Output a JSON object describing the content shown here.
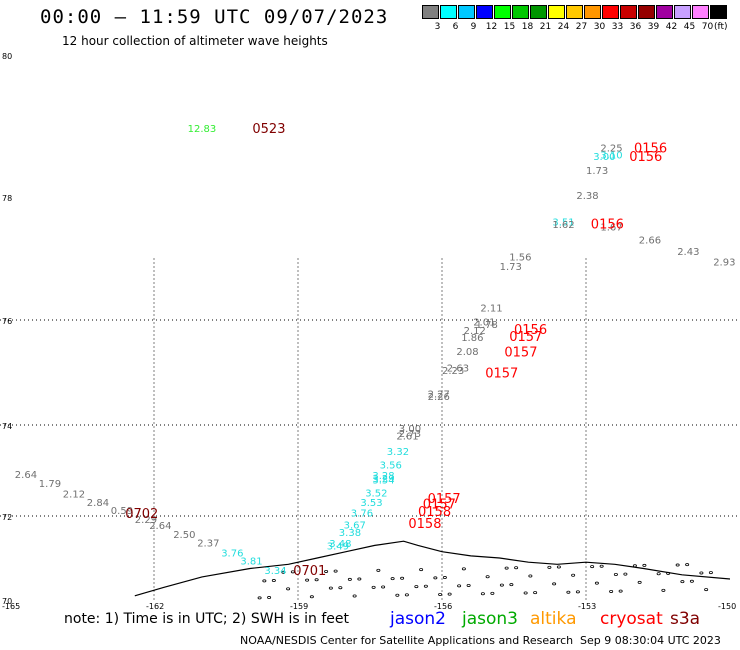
{
  "header": {
    "title": "00:00 – 11:59 UTC 09/07/2023",
    "subtitle": "12 hour collection of altimeter wave heights"
  },
  "color_scale": {
    "swatches": [
      {
        "label": "3",
        "color": "#808080"
      },
      {
        "label": "6",
        "color": "#00ffff"
      },
      {
        "label": "9",
        "color": "#00c8ff"
      },
      {
        "label": "12",
        "color": "#0000ff"
      },
      {
        "label": "15",
        "color": "#00ff00"
      },
      {
        "label": "18",
        "color": "#00c800"
      },
      {
        "label": "21",
        "color": "#009600"
      },
      {
        "label": "24",
        "color": "#ffff00"
      },
      {
        "label": "27",
        "color": "#ffc800"
      },
      {
        "label": "30",
        "color": "#ff9600"
      },
      {
        "label": "33",
        "color": "#ff0000"
      },
      {
        "label": "36",
        "color": "#c80000"
      },
      {
        "label": "39",
        "color": "#960000"
      },
      {
        "label": "42",
        "color": "#a000a0"
      },
      {
        "label": "45",
        "color": "#c8a0ff"
      },
      {
        "label": "70",
        "color": "#ff80ff"
      },
      {
        "label": "",
        "color": "#000000"
      }
    ],
    "unit": "(ft)"
  },
  "map": {
    "lat_labels": [
      "80",
      "78",
      "76",
      "74",
      "72",
      "70"
    ],
    "lon_labels": [
      "-165",
      "-162",
      "-159",
      "-156",
      "-153",
      "-150"
    ],
    "wave_labels": [
      {
        "text": "12.83",
        "color": "#33ee33",
        "lon": -161.3,
        "lat": 78.97
      },
      {
        "text": "2.25",
        "color": "#707070",
        "lon": -152.7,
        "lat": 78.7
      },
      {
        "text": "3.10",
        "color": "#22dddd",
        "lon": -152.7,
        "lat": 78.6
      },
      {
        "text": "3.00",
        "color": "#22dddd",
        "lon": -152.85,
        "lat": 78.58
      },
      {
        "text": "1.73",
        "color": "#707070",
        "lon": -153.0,
        "lat": 78.38
      },
      {
        "text": "2.38",
        "color": "#707070",
        "lon": -153.2,
        "lat": 78.03
      },
      {
        "text": "3.51",
        "color": "#22dddd",
        "lon": -153.7,
        "lat": 77.6
      },
      {
        "text": "1.62",
        "color": "#707070",
        "lon": -153.7,
        "lat": 77.56
      },
      {
        "text": "1.67",
        "color": "#707070",
        "lon": -152.7,
        "lat": 77.52
      },
      {
        "text": "2.66",
        "color": "#707070",
        "lon": -151.9,
        "lat": 77.31
      },
      {
        "text": "2.43",
        "color": "#707070",
        "lon": -151.1,
        "lat": 77.12
      },
      {
        "text": "2.93",
        "color": "#707070",
        "lon": -150.35,
        "lat": 76.95
      },
      {
        "text": "1.56",
        "color": "#707070",
        "lon": -154.6,
        "lat": 77.03
      },
      {
        "text": "1.73",
        "color": "#707070",
        "lon": -154.8,
        "lat": 76.88
      },
      {
        "text": "2.11",
        "color": "#707070",
        "lon": -155.2,
        "lat": 76.2
      },
      {
        "text": "2.01",
        "color": "#707070",
        "lon": -155.35,
        "lat": 75.97
      },
      {
        "text": "1.78",
        "color": "#707070",
        "lon": -155.3,
        "lat": 75.92
      },
      {
        "text": "2.12",
        "color": "#707070",
        "lon": -155.55,
        "lat": 75.81
      },
      {
        "text": "1.86",
        "color": "#707070",
        "lon": -155.6,
        "lat": 75.68
      },
      {
        "text": "2.08",
        "color": "#707070",
        "lon": -155.7,
        "lat": 75.41
      },
      {
        "text": "2.63",
        "color": "#707070",
        "lon": -155.9,
        "lat": 75.1
      },
      {
        "text": "2.23",
        "color": "#707070",
        "lon": -156.0,
        "lat": 75.05
      },
      {
        "text": "2.27",
        "color": "#707070",
        "lon": -156.3,
        "lat": 74.6
      },
      {
        "text": "2.26",
        "color": "#707070",
        "lon": -156.3,
        "lat": 74.55
      },
      {
        "text": "3.00",
        "color": "#707070",
        "lon": -156.9,
        "lat": 73.93
      },
      {
        "text": "2.73",
        "color": "#707070",
        "lon": -156.9,
        "lat": 73.82
      },
      {
        "text": "2.61",
        "color": "#707070",
        "lon": -156.95,
        "lat": 73.77
      },
      {
        "text": "3.32",
        "color": "#22dddd",
        "lon": -157.15,
        "lat": 73.43
      },
      {
        "text": "3.56",
        "color": "#22dddd",
        "lon": -157.3,
        "lat": 73.13
      },
      {
        "text": "3.28",
        "color": "#22dddd",
        "lon": -157.45,
        "lat": 72.9
      },
      {
        "text": "3.29",
        "color": "#22dddd",
        "lon": -157.45,
        "lat": 72.84
      },
      {
        "text": "3.54",
        "color": "#22dddd",
        "lon": -157.45,
        "lat": 72.8
      },
      {
        "text": "3.52",
        "color": "#22dddd",
        "lon": -157.6,
        "lat": 72.52
      },
      {
        "text": "3.53",
        "color": "#22dddd",
        "lon": -157.7,
        "lat": 72.31
      },
      {
        "text": "3.76",
        "color": "#22dddd",
        "lon": -157.9,
        "lat": 72.08
      },
      {
        "text": "3.67",
        "color": "#22dddd",
        "lon": -158.05,
        "lat": 71.8
      },
      {
        "text": "3.38",
        "color": "#22dddd",
        "lon": -158.15,
        "lat": 71.62
      },
      {
        "text": "3.48",
        "color": "#22dddd",
        "lon": -158.35,
        "lat": 71.36
      },
      {
        "text": "3.49",
        "color": "#22dddd",
        "lon": -158.4,
        "lat": 71.3
      },
      {
        "text": "2.64",
        "color": "#707070",
        "lon": -164.9,
        "lat": 72.92
      },
      {
        "text": "1.79",
        "color": "#707070",
        "lon": -164.4,
        "lat": 72.73
      },
      {
        "text": "2.12",
        "color": "#707070",
        "lon": -163.9,
        "lat": 72.5
      },
      {
        "text": "2.84",
        "color": "#707070",
        "lon": -163.4,
        "lat": 72.31
      },
      {
        "text": "0.59",
        "color": "#707070",
        "lon": -162.9,
        "lat": 72.13
      },
      {
        "text": "2.29",
        "color": "#707070",
        "lon": -162.4,
        "lat": 71.93
      },
      {
        "text": "2.64",
        "color": "#707070",
        "lon": -162.1,
        "lat": 71.78
      },
      {
        "text": "2.50",
        "color": "#707070",
        "lon": -161.6,
        "lat": 71.57
      },
      {
        "text": "2.37",
        "color": "#707070",
        "lon": -161.1,
        "lat": 71.37
      },
      {
        "text": "3.76",
        "color": "#22dddd",
        "lon": -160.6,
        "lat": 71.13
      },
      {
        "text": "3.81",
        "color": "#22dddd",
        "lon": -160.2,
        "lat": 70.94
      },
      {
        "text": "3.34",
        "color": "#22dddd",
        "lon": -159.7,
        "lat": 70.72
      }
    ],
    "time_labels": [
      {
        "text": "0523",
        "color": "#800000",
        "lon": -159.95,
        "lat": 78.97
      },
      {
        "text": "0156",
        "color": "#ff0000",
        "lon": -152.0,
        "lat": 78.7
      },
      {
        "text": "0156",
        "color": "#ff0000",
        "lon": -152.1,
        "lat": 78.58
      },
      {
        "text": "0156",
        "color": "#ff0000",
        "lon": -152.9,
        "lat": 77.57
      },
      {
        "text": "0156",
        "color": "#ff0000",
        "lon": -154.5,
        "lat": 75.83
      },
      {
        "text": "0157",
        "color": "#ff0000",
        "lon": -154.6,
        "lat": 75.7
      },
      {
        "text": "0157",
        "color": "#ff0000",
        "lon": -154.7,
        "lat": 75.4
      },
      {
        "text": "0157",
        "color": "#ff0000",
        "lon": -155.1,
        "lat": 75.0
      },
      {
        "text": "0157",
        "color": "#ff0000",
        "lon": -156.3,
        "lat": 72.4
      },
      {
        "text": "0157",
        "color": "#ff0000",
        "lon": -156.4,
        "lat": 72.28
      },
      {
        "text": "0158",
        "color": "#ff0000",
        "lon": -156.5,
        "lat": 72.11
      },
      {
        "text": "0158",
        "color": "#ff0000",
        "lon": -156.7,
        "lat": 71.83
      },
      {
        "text": "0702",
        "color": "#800000",
        "lon": -162.6,
        "lat": 72.07
      },
      {
        "text": "0701",
        "color": "#800000",
        "lon": -159.1,
        "lat": 70.72
      }
    ]
  },
  "footer": {
    "note": "note: 1) Time is in UTC; 2) SWH is in feet",
    "satellites": [
      {
        "name": "jason2",
        "color": "#0000ff"
      },
      {
        "name": "jason3",
        "color": "#00aa00"
      },
      {
        "name": "altika",
        "color": "#ff9900"
      },
      {
        "name": "cryosat",
        "color": "#ff0000"
      },
      {
        "name": "s3a",
        "color": "#800000"
      }
    ],
    "credit": "NOAA/NESDIS Center for Satellite Applications and Research",
    "timestamp": "Sep  9 08:30:04 UTC 2023"
  }
}
